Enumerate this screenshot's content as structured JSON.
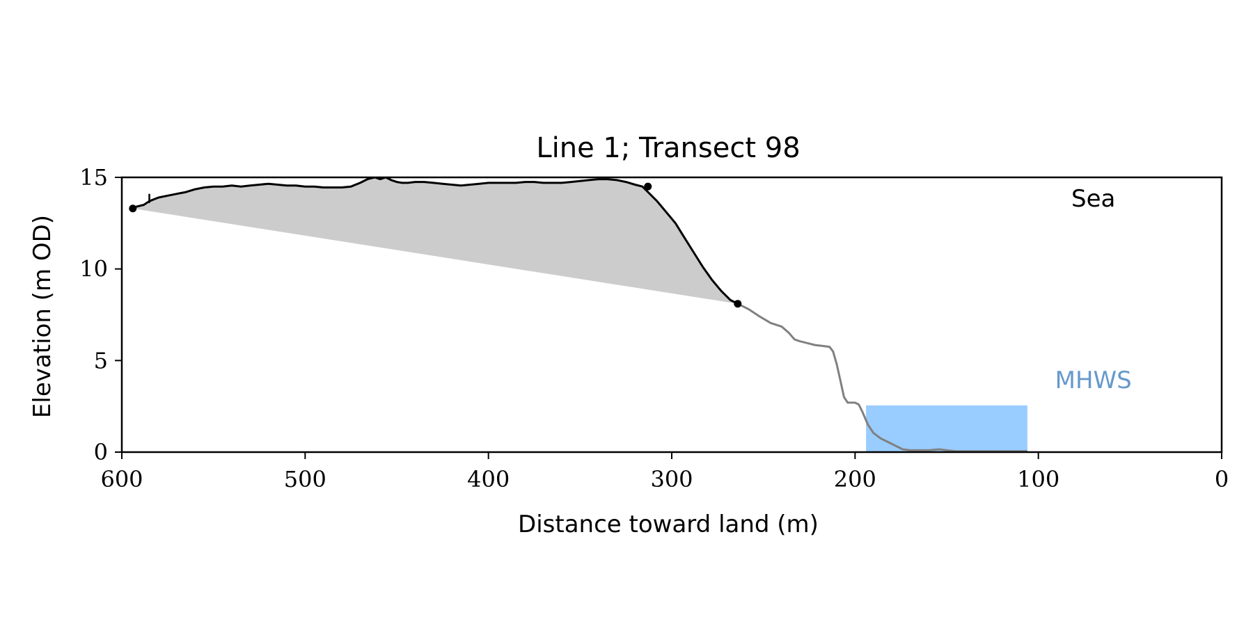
{
  "chart_data": {
    "type": "line",
    "title": "Line 1; Transect 98",
    "xlabel": "Distance toward land (m)",
    "ylabel": "Elevation (m OD)",
    "xlim": [
      600,
      0
    ],
    "ylim": [
      0,
      15
    ],
    "x_ticks": [
      600,
      500,
      400,
      300,
      200,
      100,
      0
    ],
    "y_ticks": [
      0,
      5,
      10,
      15
    ],
    "grid": false,
    "legend": null,
    "annotations": [
      {
        "text": "Sea",
        "x": 70,
        "y": 13.4,
        "color": "#000000"
      },
      {
        "text": "MHWS",
        "x": 70,
        "y": 3.5,
        "color": "#6699cc"
      }
    ],
    "series": [
      {
        "role": "cliff-profile",
        "color": "#000000",
        "x": [
          594,
          592,
          588,
          585,
          580,
          575,
          570,
          565,
          560,
          555,
          550,
          545,
          540,
          535,
          530,
          525,
          520,
          515,
          510,
          505,
          500,
          495,
          490,
          485,
          480,
          475,
          470,
          466,
          462,
          459,
          456,
          453,
          450,
          447,
          444,
          440,
          435,
          430,
          425,
          420,
          415,
          410,
          405,
          400,
          395,
          390,
          385,
          380,
          375,
          370,
          365,
          360,
          355,
          350,
          345,
          340,
          335,
          330,
          325,
          320,
          316,
          313,
          308,
          303,
          298,
          293,
          288,
          283,
          278,
          273,
          268,
          264
        ],
        "y": [
          13.3,
          13.4,
          13.5,
          13.7,
          13.9,
          14.0,
          14.1,
          14.2,
          14.35,
          14.45,
          14.5,
          14.5,
          14.55,
          14.5,
          14.55,
          14.6,
          14.65,
          14.6,
          14.55,
          14.55,
          14.5,
          14.5,
          14.45,
          14.45,
          14.45,
          14.5,
          14.7,
          14.9,
          15.0,
          14.9,
          15.0,
          14.85,
          14.75,
          14.7,
          14.7,
          14.75,
          14.75,
          14.7,
          14.65,
          14.6,
          14.55,
          14.6,
          14.65,
          14.7,
          14.7,
          14.7,
          14.7,
          14.75,
          14.75,
          14.7,
          14.7,
          14.7,
          14.75,
          14.8,
          14.85,
          14.9,
          14.9,
          14.85,
          14.75,
          14.6,
          14.5,
          14.2,
          13.7,
          13.1,
          12.5,
          11.7,
          10.9,
          10.1,
          9.4,
          8.8,
          8.3,
          8.1
        ],
        "markers": [
          [
            594,
            13.3
          ],
          [
            313,
            14.5
          ],
          [
            264,
            8.1
          ]
        ]
      },
      {
        "role": "foreshore-profile",
        "color": "#808080",
        "x": [
          264,
          258,
          252,
          246,
          240,
          236,
          233,
          230,
          226,
          222,
          218,
          214,
          212,
          210,
          208,
          206,
          204,
          202,
          200,
          198,
          196,
          193,
          190,
          186,
          182,
          178,
          174,
          170,
          166,
          160,
          154,
          150,
          145,
          140,
          130,
          120,
          110,
          106
        ],
        "y": [
          8.1,
          7.8,
          7.4,
          7.05,
          6.85,
          6.5,
          6.15,
          6.05,
          5.95,
          5.85,
          5.8,
          5.75,
          5.5,
          4.8,
          3.9,
          3.0,
          2.7,
          2.7,
          2.7,
          2.6,
          2.2,
          1.5,
          1.05,
          0.75,
          0.55,
          0.35,
          0.15,
          0.1,
          0.1,
          0.1,
          0.15,
          0.1,
          0.05,
          0.05,
          0.05,
          0.05,
          0.05,
          0.05
        ]
      }
    ],
    "fill_regions": [
      {
        "role": "cliff-area",
        "color": "#cccccc",
        "base_line": [
          [
            594,
            13.3
          ],
          [
            264,
            8.1
          ]
        ]
      },
      {
        "role": "mhws-rectangle",
        "color": "#99ccff",
        "x_range": [
          194,
          106
        ],
        "y_range": [
          0,
          2.55
        ]
      }
    ],
    "extra_marks": [
      {
        "role": "small-tick",
        "x": 585,
        "y_range": [
          13.6,
          14.1
        ]
      }
    ]
  }
}
